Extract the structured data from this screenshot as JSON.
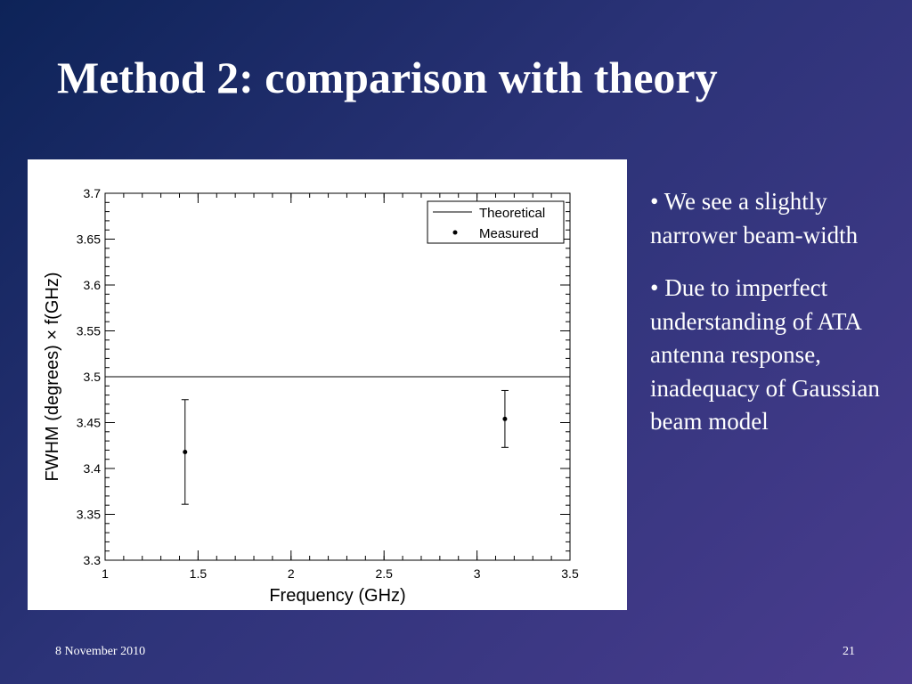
{
  "slide": {
    "title": "Method 2: comparison with theory",
    "bullets": [
      "• We see a slightly narrower beam-width",
      "• Due to imperfect understanding of ATA antenna response, inadequacy of Gaussian beam model"
    ],
    "footer_date": "8 November 2010",
    "page_number": "21"
  },
  "chart_data": {
    "type": "scatter",
    "title": "",
    "xlabel": "Frequency (GHz)",
    "ylabel": "FWHM (degrees) × f(GHz)",
    "xlim": [
      1,
      3.5
    ],
    "ylim": [
      3.3,
      3.7
    ],
    "xticks": [
      "1",
      "1.5",
      "2",
      "2.5",
      "3",
      "3.5"
    ],
    "yticks": [
      "3.3",
      "3.35",
      "3.4",
      "3.45",
      "3.5",
      "3.55",
      "3.6",
      "3.65",
      "3.7"
    ],
    "legend_position": "top-right",
    "series": [
      {
        "name": "Theoretical",
        "style": "line",
        "y": 3.5
      },
      {
        "name": "Measured",
        "style": "points-with-errorbars",
        "points": [
          {
            "x": 1.43,
            "y": 3.418,
            "ylow": 3.361,
            "yhigh": 3.475
          },
          {
            "x": 3.15,
            "y": 3.454,
            "ylow": 3.423,
            "yhigh": 3.485
          }
        ]
      }
    ]
  }
}
